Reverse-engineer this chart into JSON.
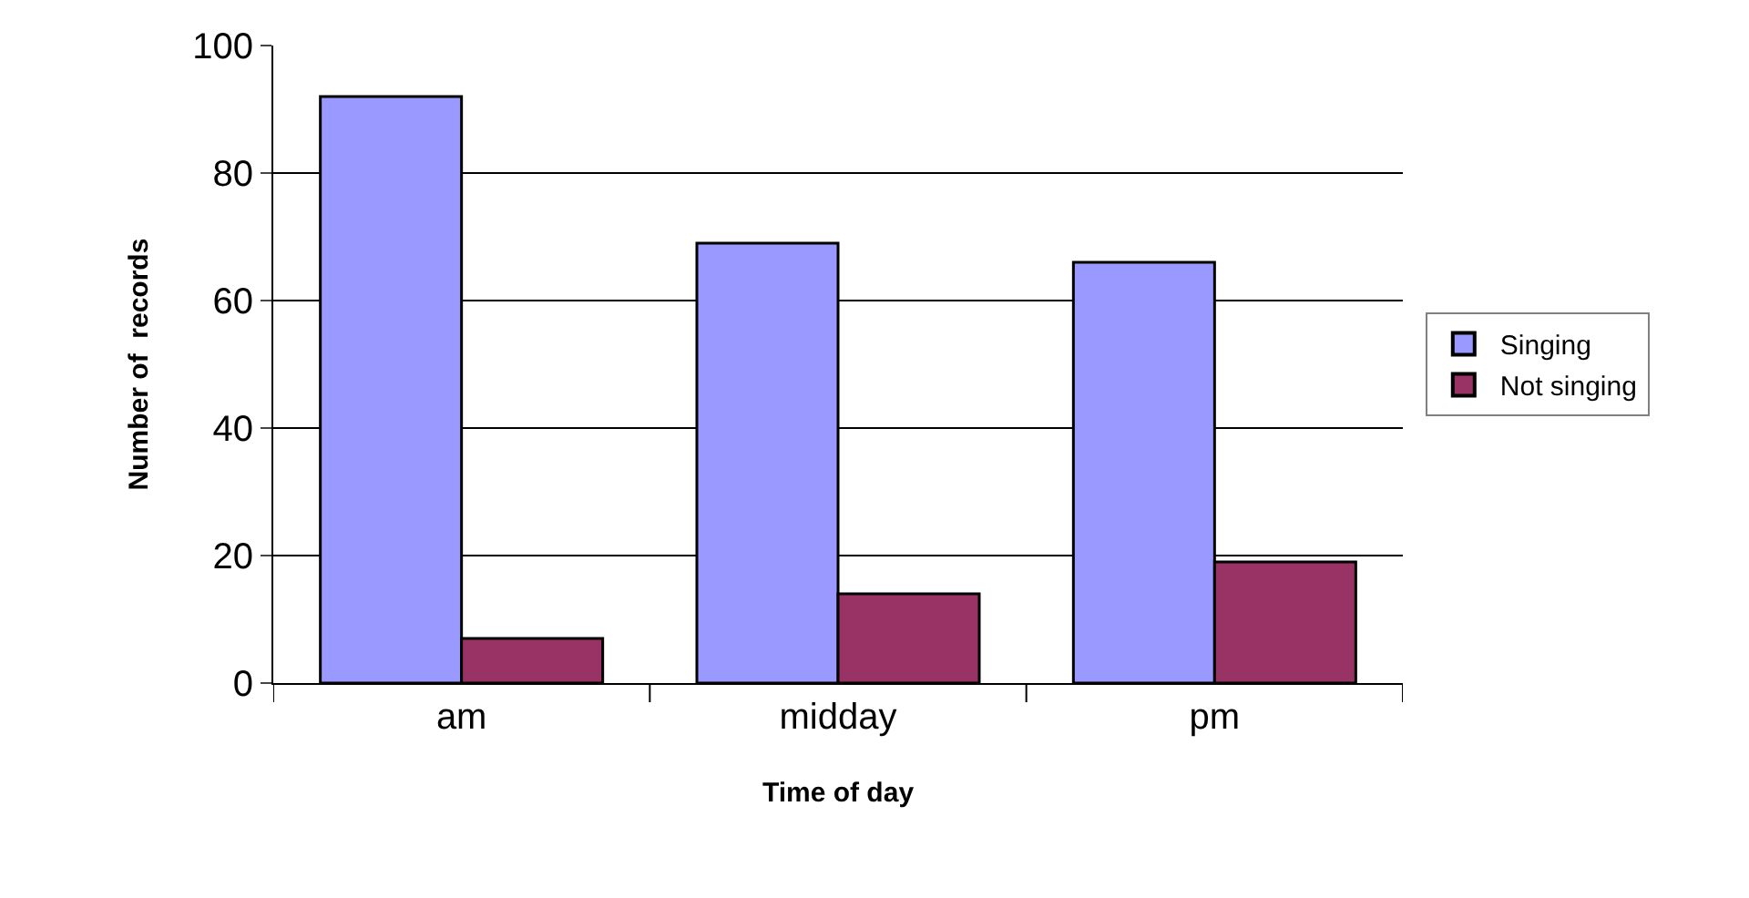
{
  "chart_data": {
    "type": "bar",
    "xlabel": "Time of day",
    "ylabel": "Number of  records",
    "categories": [
      "am",
      "midday",
      "pm"
    ],
    "series": [
      {
        "name": "Singing",
        "color": "#9999ff",
        "values": [
          92,
          69,
          66
        ]
      },
      {
        "name": "Not singing",
        "color": "#993366",
        "values": [
          7,
          14,
          19
        ]
      }
    ],
    "ylim": [
      0,
      100
    ],
    "yticks": [
      0,
      20,
      40,
      60,
      80,
      100
    ],
    "grid": "y",
    "legend": "right"
  }
}
